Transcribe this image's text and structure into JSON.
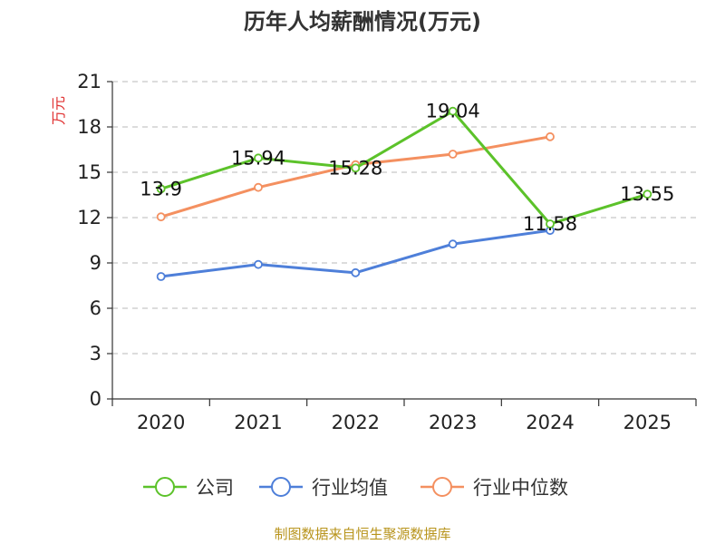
{
  "chart_data": {
    "type": "line",
    "title": "历年人均薪酬情况(万元)",
    "xlabel": "",
    "ylabel": "万元",
    "categories": [
      "2020",
      "2021",
      "2022",
      "2023",
      "2024",
      "2025"
    ],
    "y_ticks": [
      "0",
      "3",
      "6",
      "9",
      "12",
      "15",
      "18",
      "21"
    ],
    "ylim": [
      0,
      21
    ],
    "grid": true,
    "legend_position": "bottom",
    "series": [
      {
        "name": "公司",
        "color": "#5cc22a",
        "values": [
          13.9,
          15.94,
          15.28,
          19.04,
          11.58,
          13.55
        ],
        "labels": [
          "13.9",
          "15.94",
          "15.28",
          "19.04",
          "11.58",
          "13.55"
        ]
      },
      {
        "name": "行业均值",
        "color": "#4e7fd9",
        "values": [
          8.1,
          8.9,
          8.35,
          10.25,
          11.15,
          null
        ]
      },
      {
        "name": "行业中位数",
        "color": "#f49060",
        "values": [
          12.05,
          14.0,
          15.5,
          16.2,
          17.35,
          null
        ]
      }
    ],
    "source": "制图数据来自恒生聚源数据库"
  }
}
